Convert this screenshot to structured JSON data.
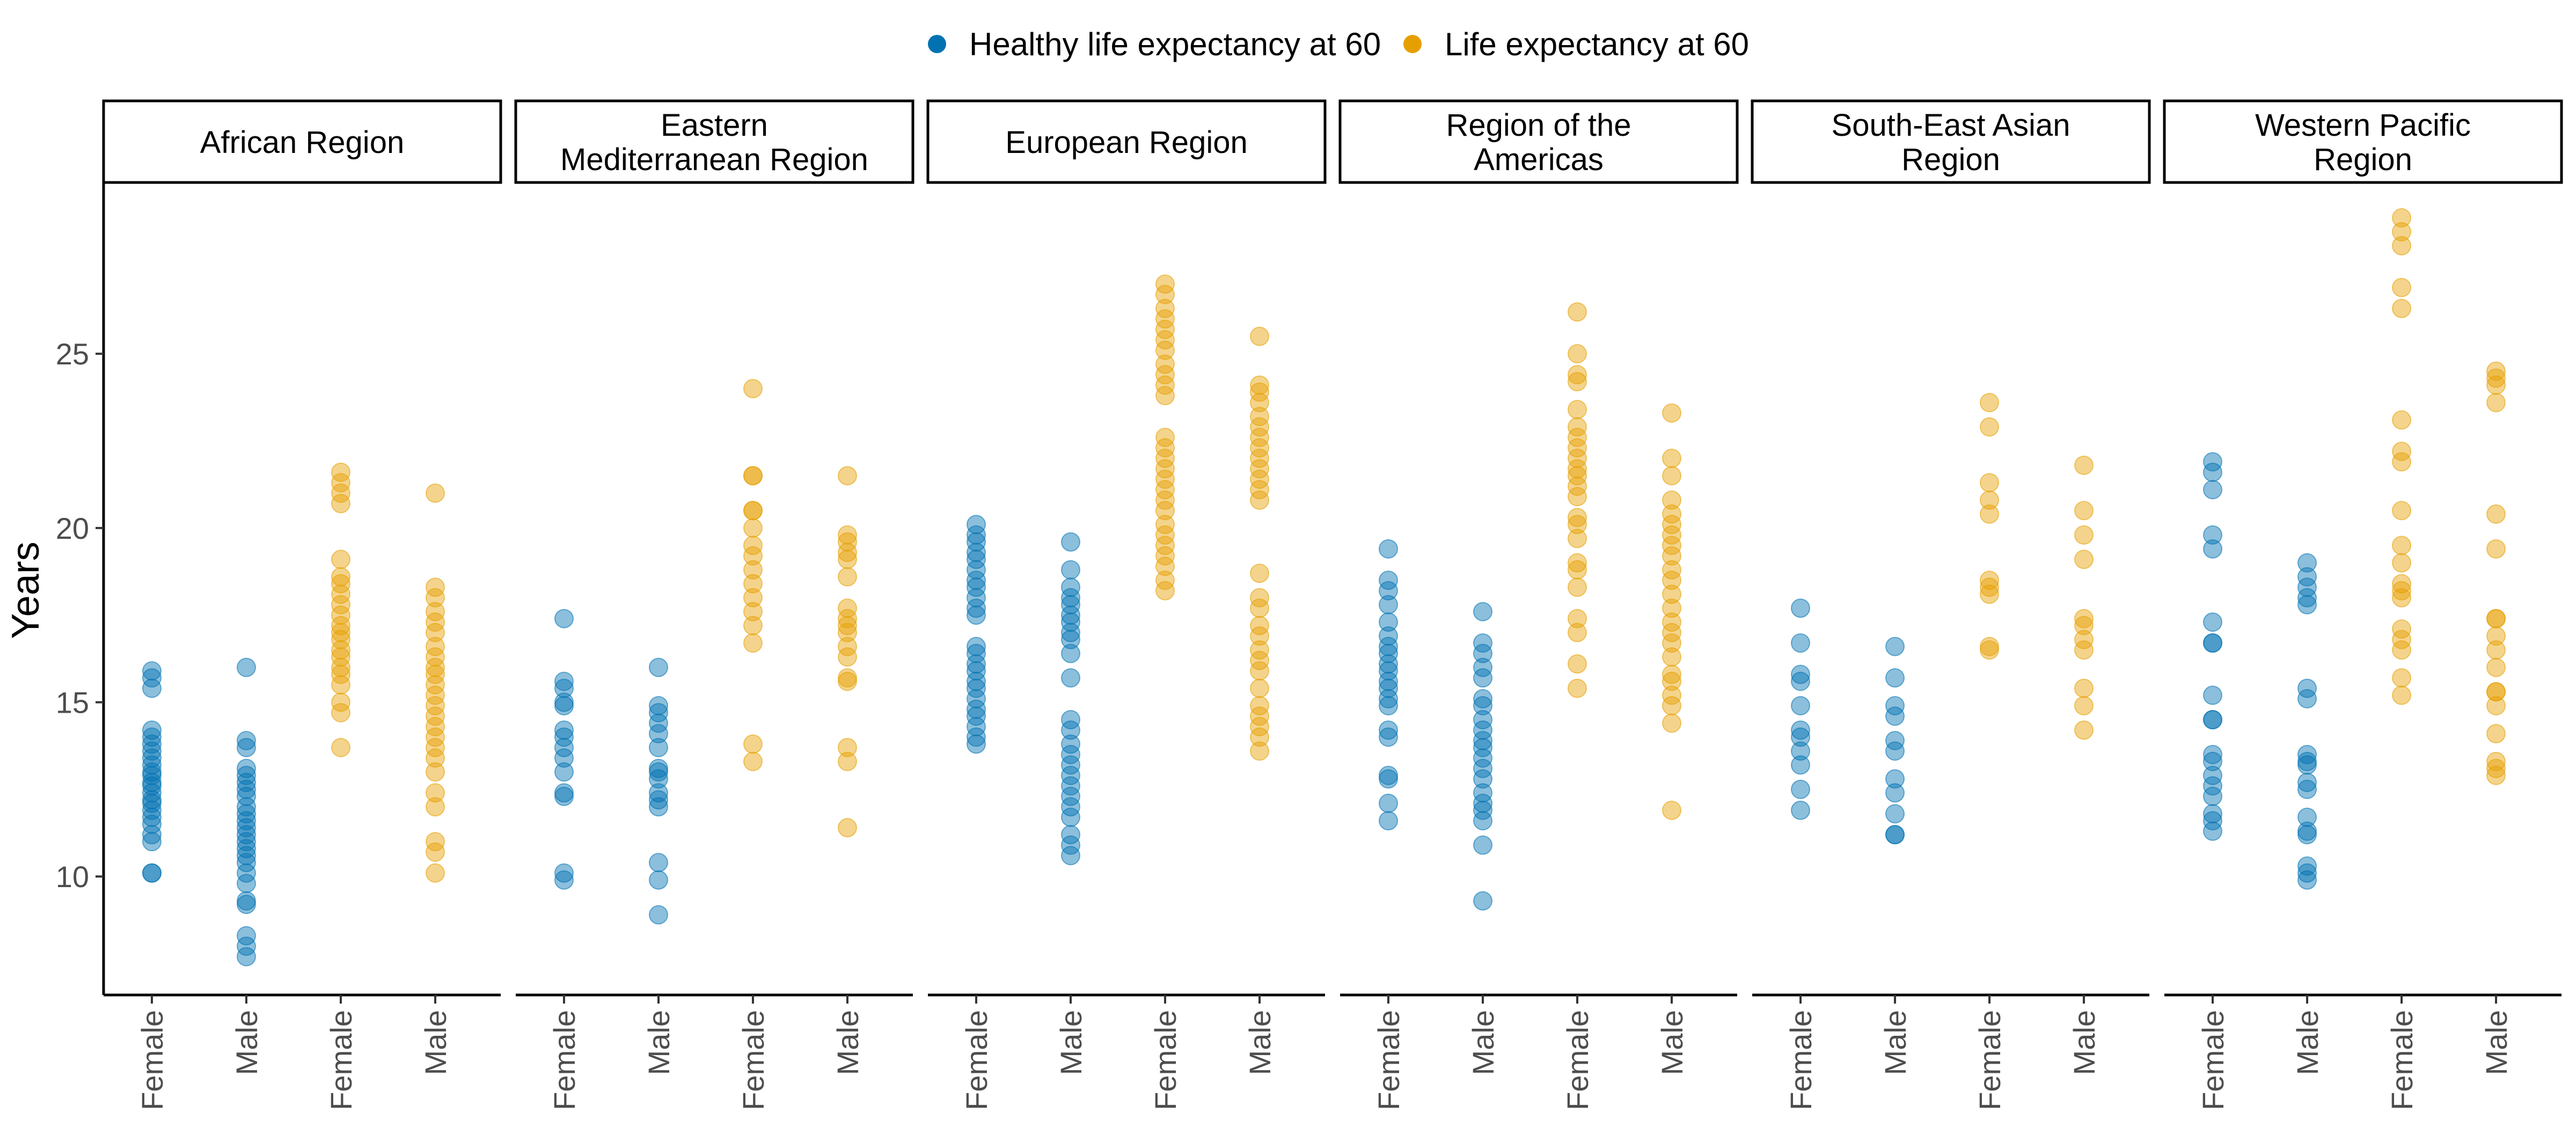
{
  "chart_data": {
    "type": "scatter",
    "ylabel": "Years",
    "ylim": [
      6.6,
      29.9
    ],
    "yticks": [
      10,
      15,
      20,
      25
    ],
    "legend_position": "top",
    "grid": false,
    "point_alpha": 0.45,
    "series": [
      {
        "name": "Healthy life expectancy at 60",
        "color": "#0072B2"
      },
      {
        "name": "Life expectancy at 60",
        "color": "#E69F00"
      }
    ],
    "categories": [
      "Female",
      "Male",
      "Female",
      "Male"
    ],
    "category_series": [
      0,
      0,
      1,
      1
    ],
    "panels": [
      {
        "title_lines": [
          "African Region"
        ],
        "groups": [
          [
            15.9,
            15.7,
            15.4,
            14.2,
            14.0,
            13.8,
            13.6,
            13.4,
            13.2,
            13.0,
            12.9,
            12.7,
            12.6,
            12.4,
            12.2,
            12.1,
            11.9,
            11.7,
            11.5,
            11.2,
            11.0,
            10.1,
            10.1
          ],
          [
            16.0,
            13.9,
            13.7,
            13.1,
            12.9,
            12.7,
            12.5,
            12.3,
            12.0,
            11.8,
            11.6,
            11.4,
            11.2,
            11.0,
            10.8,
            10.6,
            10.4,
            10.1,
            9.8,
            9.3,
            9.2,
            8.3,
            8.0,
            7.7
          ],
          [
            21.6,
            21.3,
            21.0,
            20.7,
            19.1,
            18.6,
            18.4,
            18.1,
            17.8,
            17.5,
            17.2,
            17.0,
            16.8,
            16.5,
            16.3,
            16.0,
            15.8,
            15.5,
            15.0,
            14.7,
            13.7
          ],
          [
            21.0,
            18.3,
            18.0,
            17.6,
            17.3,
            17.0,
            16.6,
            16.3,
            16.0,
            15.8,
            15.5,
            15.2,
            14.9,
            14.6,
            14.3,
            14.0,
            13.7,
            13.4,
            13.0,
            12.4,
            12.0,
            11.0,
            10.7,
            10.1
          ]
        ]
      },
      {
        "title_lines": [
          "Eastern",
          "Mediterranean Region"
        ],
        "groups": [
          [
            17.4,
            15.6,
            15.4,
            15.0,
            14.9,
            14.2,
            14.0,
            13.7,
            13.4,
            13.0,
            12.4,
            12.3,
            10.1,
            9.9
          ],
          [
            16.0,
            14.9,
            14.7,
            14.4,
            14.1,
            13.7,
            13.1,
            13.0,
            12.8,
            12.4,
            12.2,
            12.0,
            10.4,
            9.9,
            8.9
          ],
          [
            24.0,
            21.5,
            21.5,
            20.5,
            20.5,
            20.0,
            19.5,
            19.2,
            18.8,
            18.4,
            18.0,
            17.6,
            17.2,
            16.7,
            13.8,
            13.3
          ],
          [
            21.5,
            19.8,
            19.6,
            19.3,
            19.1,
            18.6,
            17.7,
            17.4,
            17.2,
            17.0,
            16.6,
            16.3,
            15.7,
            15.6,
            13.7,
            13.3,
            11.4
          ]
        ]
      },
      {
        "title_lines": [
          "European Region"
        ],
        "groups": [
          [
            20.1,
            19.8,
            19.6,
            19.3,
            19.1,
            18.8,
            18.5,
            18.3,
            18.0,
            17.7,
            17.5,
            16.6,
            16.4,
            16.1,
            15.9,
            15.6,
            15.4,
            15.1,
            14.8,
            14.6,
            14.3,
            14.0,
            13.8
          ],
          [
            19.6,
            18.8,
            18.3,
            18.0,
            17.8,
            17.5,
            17.3,
            17.0,
            16.8,
            16.4,
            15.7,
            14.5,
            14.2,
            13.8,
            13.5,
            13.2,
            12.9,
            12.6,
            12.3,
            12.0,
            11.7,
            11.2,
            10.9,
            10.6
          ],
          [
            27.0,
            26.7,
            26.3,
            26.0,
            25.7,
            25.4,
            25.1,
            24.7,
            24.4,
            24.1,
            23.8,
            22.6,
            22.3,
            22.0,
            21.7,
            21.4,
            21.1,
            20.8,
            20.5,
            20.1,
            19.8,
            19.5,
            19.2,
            18.9,
            18.5,
            18.2
          ],
          [
            25.5,
            24.1,
            23.9,
            23.6,
            23.2,
            22.9,
            22.6,
            22.3,
            22.0,
            21.7,
            21.4,
            21.1,
            20.8,
            18.7,
            18.0,
            17.7,
            17.2,
            16.9,
            16.5,
            16.2,
            15.9,
            15.4,
            14.9,
            14.6,
            14.3,
            14.0,
            13.6
          ]
        ]
      },
      {
        "title_lines": [
          "Region of the",
          "Americas"
        ],
        "groups": [
          [
            19.4,
            18.5,
            18.2,
            17.8,
            17.3,
            16.9,
            16.6,
            16.4,
            16.1,
            15.9,
            15.6,
            15.4,
            15.1,
            14.9,
            14.2,
            14.0,
            12.9,
            12.8,
            12.1,
            11.6
          ],
          [
            17.6,
            16.7,
            16.4,
            16.0,
            15.7,
            15.1,
            14.9,
            14.5,
            14.2,
            13.9,
            13.7,
            13.4,
            13.1,
            12.8,
            12.4,
            12.1,
            11.9,
            11.6,
            10.9,
            9.3
          ],
          [
            26.2,
            25.0,
            24.4,
            24.2,
            23.4,
            22.9,
            22.6,
            22.3,
            22.0,
            21.7,
            21.5,
            21.2,
            20.9,
            20.3,
            20.1,
            19.7,
            19.0,
            18.8,
            18.3,
            17.4,
            17.0,
            16.1,
            15.4
          ],
          [
            23.3,
            22.0,
            21.5,
            20.8,
            20.4,
            20.1,
            19.8,
            19.5,
            19.2,
            18.8,
            18.5,
            18.1,
            17.7,
            17.3,
            17.0,
            16.7,
            16.3,
            15.8,
            15.6,
            15.2,
            14.9,
            14.4,
            11.9
          ]
        ]
      },
      {
        "title_lines": [
          "South-East Asian",
          "Region"
        ],
        "groups": [
          [
            17.7,
            16.7,
            15.8,
            15.6,
            14.9,
            14.2,
            14.0,
            13.6,
            13.2,
            12.5,
            11.9
          ],
          [
            16.6,
            15.7,
            14.9,
            14.6,
            13.9,
            13.6,
            12.8,
            12.4,
            11.8,
            11.2,
            11.2
          ],
          [
            23.6,
            22.9,
            21.3,
            20.8,
            20.4,
            18.5,
            18.3,
            18.1,
            16.6,
            16.5
          ],
          [
            21.8,
            20.5,
            19.8,
            19.1,
            17.4,
            17.2,
            16.8,
            16.5,
            15.4,
            14.9,
            14.2
          ]
        ]
      },
      {
        "title_lines": [
          "Western Pacific",
          "Region"
        ],
        "groups": [
          [
            21.9,
            21.6,
            21.1,
            19.8,
            19.4,
            17.3,
            16.7,
            16.7,
            15.2,
            14.5,
            14.5,
            13.5,
            13.3,
            12.9,
            12.6,
            12.3,
            11.8,
            11.6,
            11.3
          ],
          [
            19.0,
            18.6,
            18.3,
            18.0,
            17.8,
            15.4,
            15.1,
            13.5,
            13.3,
            13.2,
            12.7,
            12.5,
            11.7,
            11.3,
            11.2,
            10.3,
            10.1,
            9.9
          ],
          [
            28.9,
            28.5,
            28.1,
            26.9,
            26.3,
            23.1,
            22.2,
            21.9,
            20.5,
            19.5,
            19.0,
            18.4,
            18.2,
            18.0,
            17.1,
            16.8,
            16.5,
            15.7,
            15.2
          ],
          [
            24.5,
            24.3,
            24.1,
            23.6,
            20.4,
            19.4,
            17.4,
            17.4,
            16.9,
            16.5,
            16.0,
            15.3,
            15.3,
            14.9,
            14.1,
            13.3,
            13.1,
            12.9
          ]
        ]
      }
    ]
  }
}
